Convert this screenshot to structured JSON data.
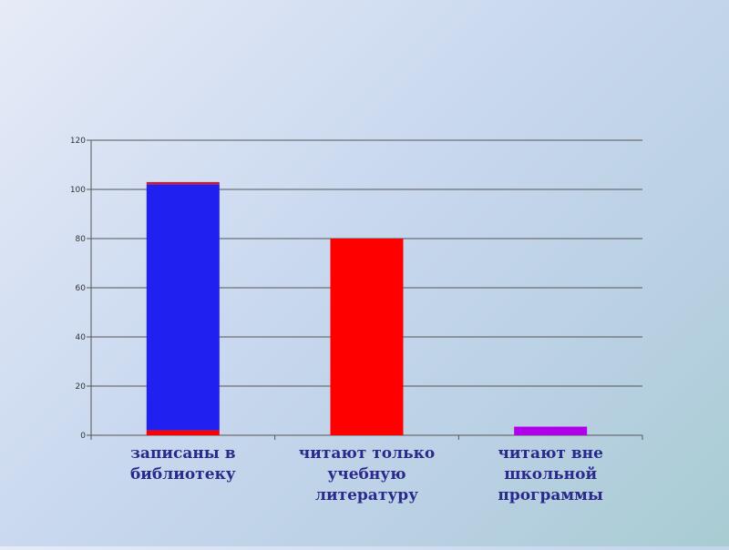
{
  "chart_data": {
    "type": "bar",
    "categories": [
      [
        "записаны в",
        "библиотеку"
      ],
      [
        "читают только",
        "учебную",
        "литературу"
      ],
      [
        "читают вне",
        "школьной",
        "программы"
      ]
    ],
    "series": [
      {
        "values": [
          2,
          80,
          0
        ],
        "color": "#ff0000"
      },
      {
        "values": [
          100,
          0,
          0
        ],
        "color": "#2020f0"
      },
      {
        "values": [
          1,
          0,
          0
        ],
        "color": "#c02040"
      },
      {
        "values": [
          0,
          0,
          3.5
        ],
        "color": "#b000e8"
      }
    ],
    "ylim": [
      0,
      120
    ],
    "yticks": [
      0,
      20,
      40,
      60,
      80,
      100,
      120
    ],
    "grid": true,
    "legend": "none",
    "title": "",
    "xlabel": "",
    "ylabel": ""
  }
}
